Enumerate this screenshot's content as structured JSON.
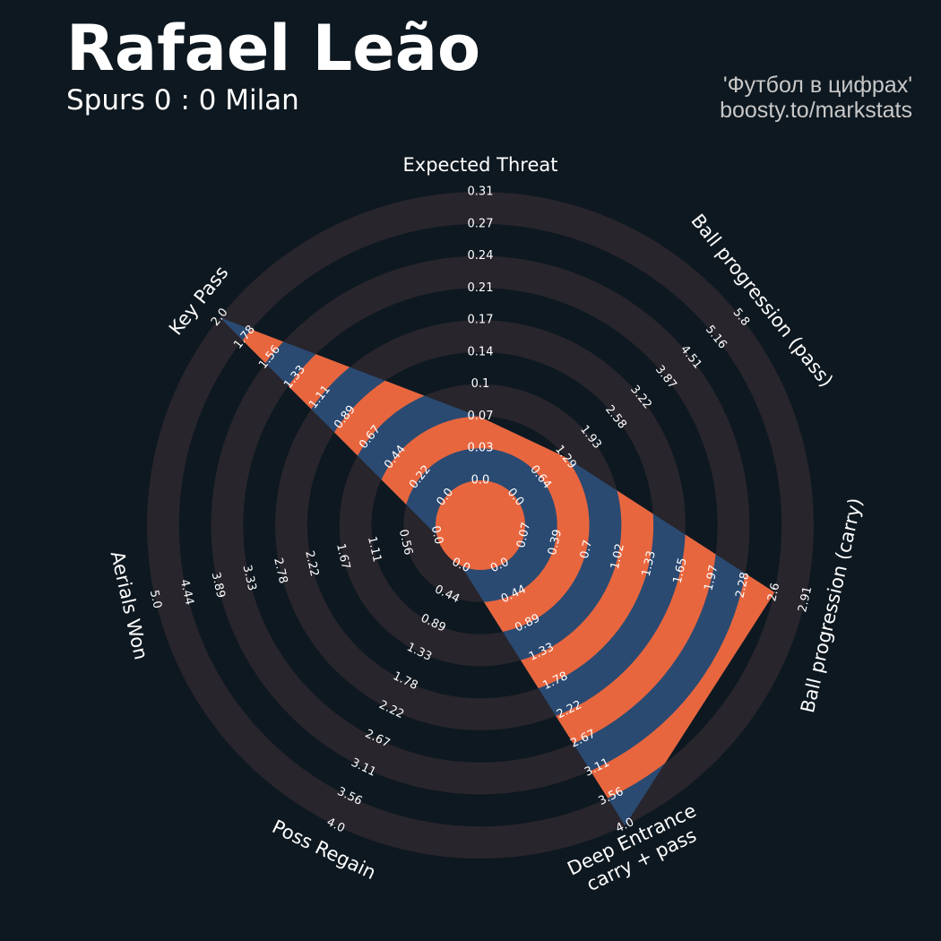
{
  "header": {
    "title": "Rafael Leão",
    "subtitle": "Spurs 0 : 0 Milan",
    "credit_line1": "'Футбол в цифрах'",
    "credit_line2": "boosty.to/markstats"
  },
  "colors": {
    "background": "#0e1820",
    "ring_band": "#28252c",
    "fill_primary": "#2a4a72",
    "fill_alternate": "#e8663e",
    "text": "#ffffff",
    "credit_text": "#c8c8c8"
  },
  "chart_data": {
    "type": "radar",
    "title": "Rafael Leão",
    "subtitle": "Spurs 0 : 0 Milan",
    "parameters": [
      {
        "name": "Expected Threat",
        "min": 0.0,
        "max": 0.31,
        "value": 0.068,
        "ticks": [
          "0.0",
          "0.03",
          "0.07",
          "0.1",
          "0.14",
          "0.17",
          "0.21",
          "0.24",
          "0.27",
          "0.31"
        ]
      },
      {
        "name": "Ball progression (pass)",
        "min": 0.0,
        "max": 5.8,
        "value": 1.29,
        "ticks": [
          "0.0",
          "0.64",
          "1.29",
          "1.93",
          "2.58",
          "3.22",
          "3.87",
          "4.51",
          "5.16",
          "5.8"
        ]
      },
      {
        "name": "Ball progression (carry)",
        "min": 0.07,
        "max": 2.91,
        "value": 2.6,
        "ticks": [
          "0.07",
          "0.39",
          "0.7",
          "1.02",
          "1.33",
          "1.65",
          "1.97",
          "2.28",
          "2.6",
          "2.91"
        ]
      },
      {
        "name": "Deep Entrance\ncarry + pass",
        "min": 0.0,
        "max": 4.0,
        "value": 4.0,
        "ticks": [
          "0.0",
          "0.44",
          "0.89",
          "1.33",
          "1.78",
          "2.22",
          "2.67",
          "3.11",
          "3.56",
          "4.0"
        ]
      },
      {
        "name": "Poss Regain",
        "min": 0.0,
        "max": 4.0,
        "value": 0.0,
        "ticks": [
          "0.0",
          "0.44",
          "0.89",
          "1.33",
          "1.78",
          "2.22",
          "2.67",
          "3.11",
          "3.56",
          "4.0"
        ]
      },
      {
        "name": "Aerials Won",
        "min": 0.0,
        "max": 5.0,
        "value": 0.0,
        "ticks": [
          "0.0",
          "0.56",
          "1.11",
          "1.67",
          "2.22",
          "2.78",
          "3.33",
          "3.89",
          "4.44",
          "5.0"
        ]
      },
      {
        "name": "Key Pass",
        "min": 0.0,
        "max": 2.0,
        "value": 2.0,
        "ticks": [
          "0.0",
          "0.22",
          "0.44",
          "0.67",
          "0.89",
          "1.11",
          "1.33",
          "1.56",
          "1.78",
          "2.0"
        ]
      }
    ]
  }
}
